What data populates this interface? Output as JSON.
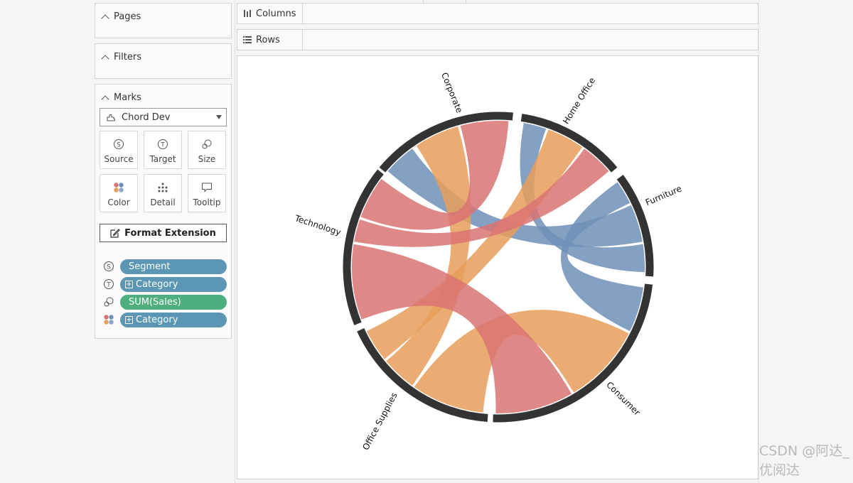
{
  "shelves": {
    "pages": "Pages",
    "filters": "Filters",
    "marks": "Marks",
    "columns": "Columns",
    "rows": "Rows"
  },
  "marks": {
    "mark_type": "Chord Dev",
    "buttons": {
      "source": "Source",
      "target": "Target",
      "size": "Size",
      "color": "Color",
      "detail": "Detail",
      "tooltip": "Tooltip"
    },
    "format_extension": "Format Extension",
    "encodings": [
      {
        "role": "source",
        "field": "Segment",
        "color": "#5b97b5"
      },
      {
        "role": "target",
        "field": "Category",
        "color": "#5b97b5"
      },
      {
        "role": "size",
        "field": "SUM(Sales)",
        "color": "#4caf7d"
      },
      {
        "role": "color",
        "field": "Category",
        "color": "#5b97b5"
      }
    ]
  },
  "chart_data": {
    "type": "chord",
    "nodes": [
      {
        "name": "Corporate",
        "group": "segment"
      },
      {
        "name": "Home Office",
        "group": "segment"
      },
      {
        "name": "Consumer",
        "group": "segment"
      },
      {
        "name": "Furniture",
        "group": "category",
        "color": "#6f8fb7"
      },
      {
        "name": "Office Supplies",
        "group": "category",
        "color": "#e89e5a"
      },
      {
        "name": "Technology",
        "group": "category",
        "color": "#d97373"
      }
    ],
    "links": [
      {
        "source": "Corporate",
        "target": "Furniture"
      },
      {
        "source": "Corporate",
        "target": "Office Supplies"
      },
      {
        "source": "Corporate",
        "target": "Technology"
      },
      {
        "source": "Home Office",
        "target": "Furniture"
      },
      {
        "source": "Home Office",
        "target": "Office Supplies"
      },
      {
        "source": "Home Office",
        "target": "Technology"
      },
      {
        "source": "Consumer",
        "target": "Furniture"
      },
      {
        "source": "Consumer",
        "target": "Office Supplies"
      },
      {
        "source": "Consumer",
        "target": "Technology"
      }
    ],
    "colors": {
      "Furniture": "#6f8fb7",
      "Office Supplies": "#e89e5a",
      "Technology": "#d97373",
      "ring": "#333333"
    }
  },
  "watermark": "CSDN @阿达_优阅达"
}
